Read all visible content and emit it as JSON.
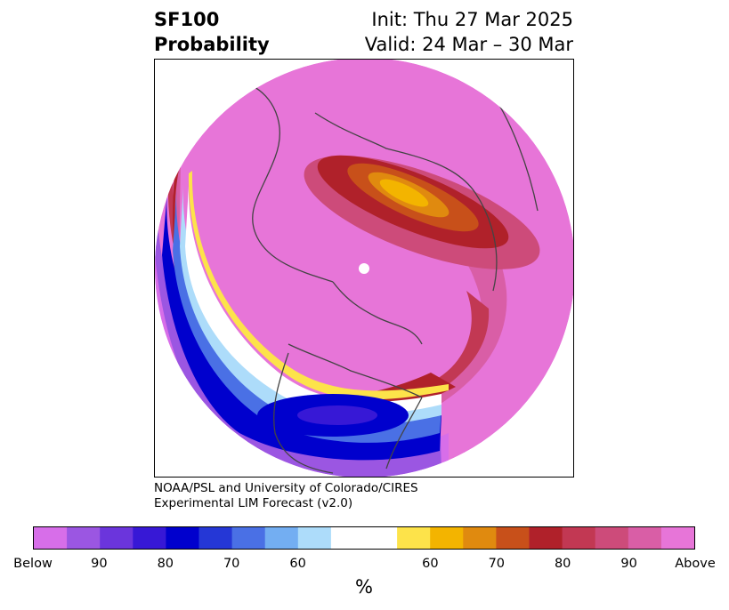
{
  "header": {
    "title_line1": "SF100",
    "title_line2": "Probability",
    "init": "Init: Thu 27 Mar 2025",
    "valid": "Valid: 24 Mar – 30 Mar"
  },
  "credit": {
    "line1": "NOAA/PSL and University of Colorado/CIRES",
    "line2": "Experimental LIM Forecast (v2.0)"
  },
  "colorbar": {
    "unit": "%",
    "colors": [
      "#d76ee9",
      "#9b56e2",
      "#6b35dc",
      "#3718d6",
      "#0000cd",
      "#2537d6",
      "#4a70e5",
      "#73aef2",
      "#addcfa",
      "#ffffff",
      "#ffffff",
      "#fde34a",
      "#f3b400",
      "#e08a0f",
      "#c8501a",
      "#b0212a",
      "#c23853",
      "#cd4b7a",
      "#d95ea6",
      "#e775d8"
    ],
    "ticks": [
      "Below",
      "90",
      "80",
      "70",
      "60",
      "60",
      "70",
      "80",
      "90",
      "Above"
    ]
  },
  "colors": {
    "above": "#e775d8",
    "below": "#d76ee9",
    "coast": "#444444"
  }
}
